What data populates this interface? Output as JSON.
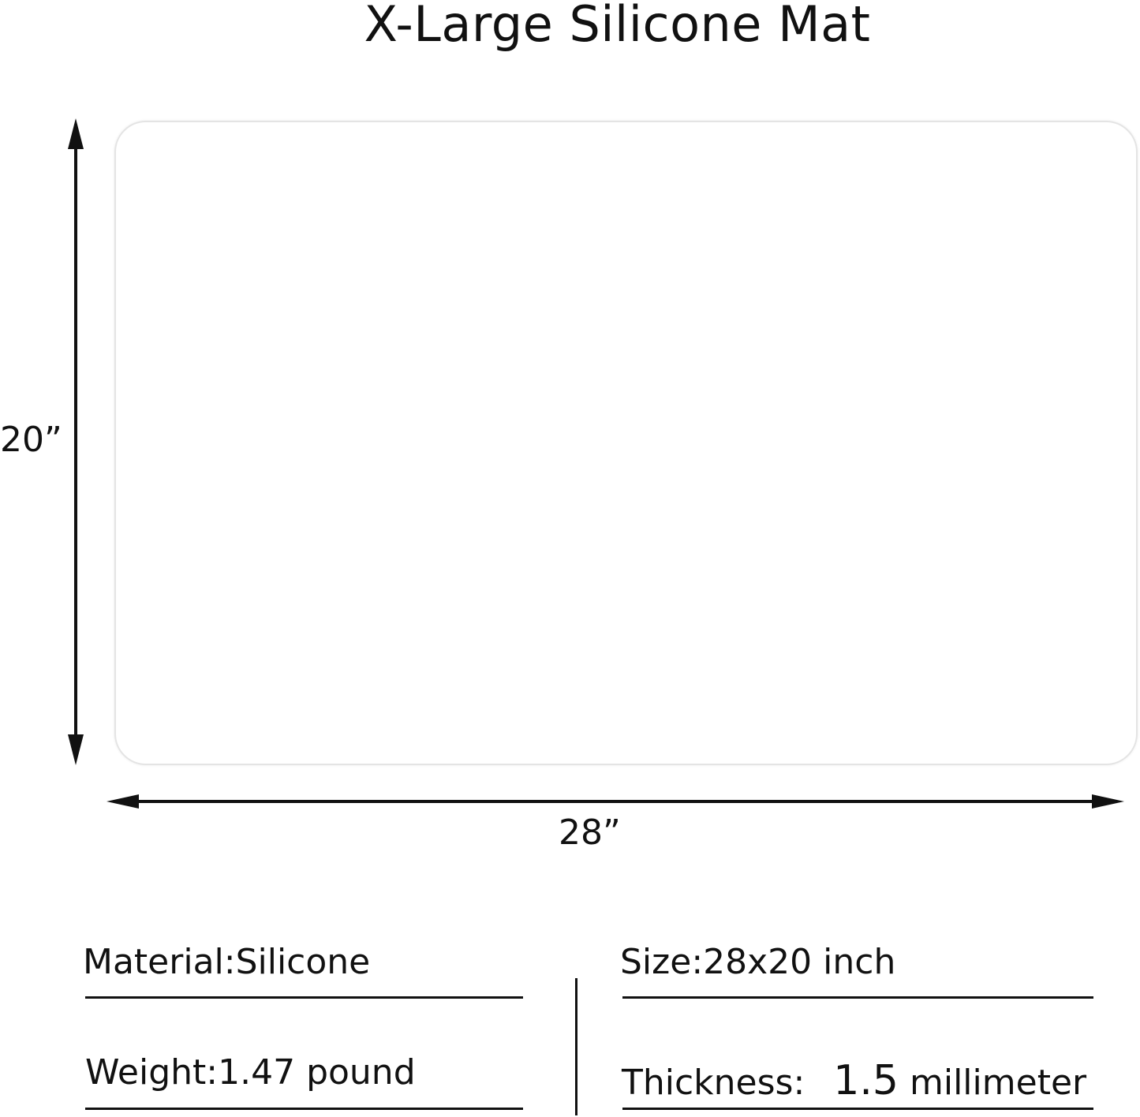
{
  "title": "X-Large Silicone Mat",
  "dimensions": {
    "height_label": "20”",
    "width_label": "28”"
  },
  "specs": {
    "material": "Material:Silicone",
    "weight": "Weight:1.47 pound",
    "size": "Size:28x20 inch",
    "thickness_label": "Thickness:",
    "thickness_value": "1.5",
    "thickness_unit": "millimeter"
  },
  "colors": {
    "ink": "#111111",
    "mat_border": "#e4e4e4"
  }
}
